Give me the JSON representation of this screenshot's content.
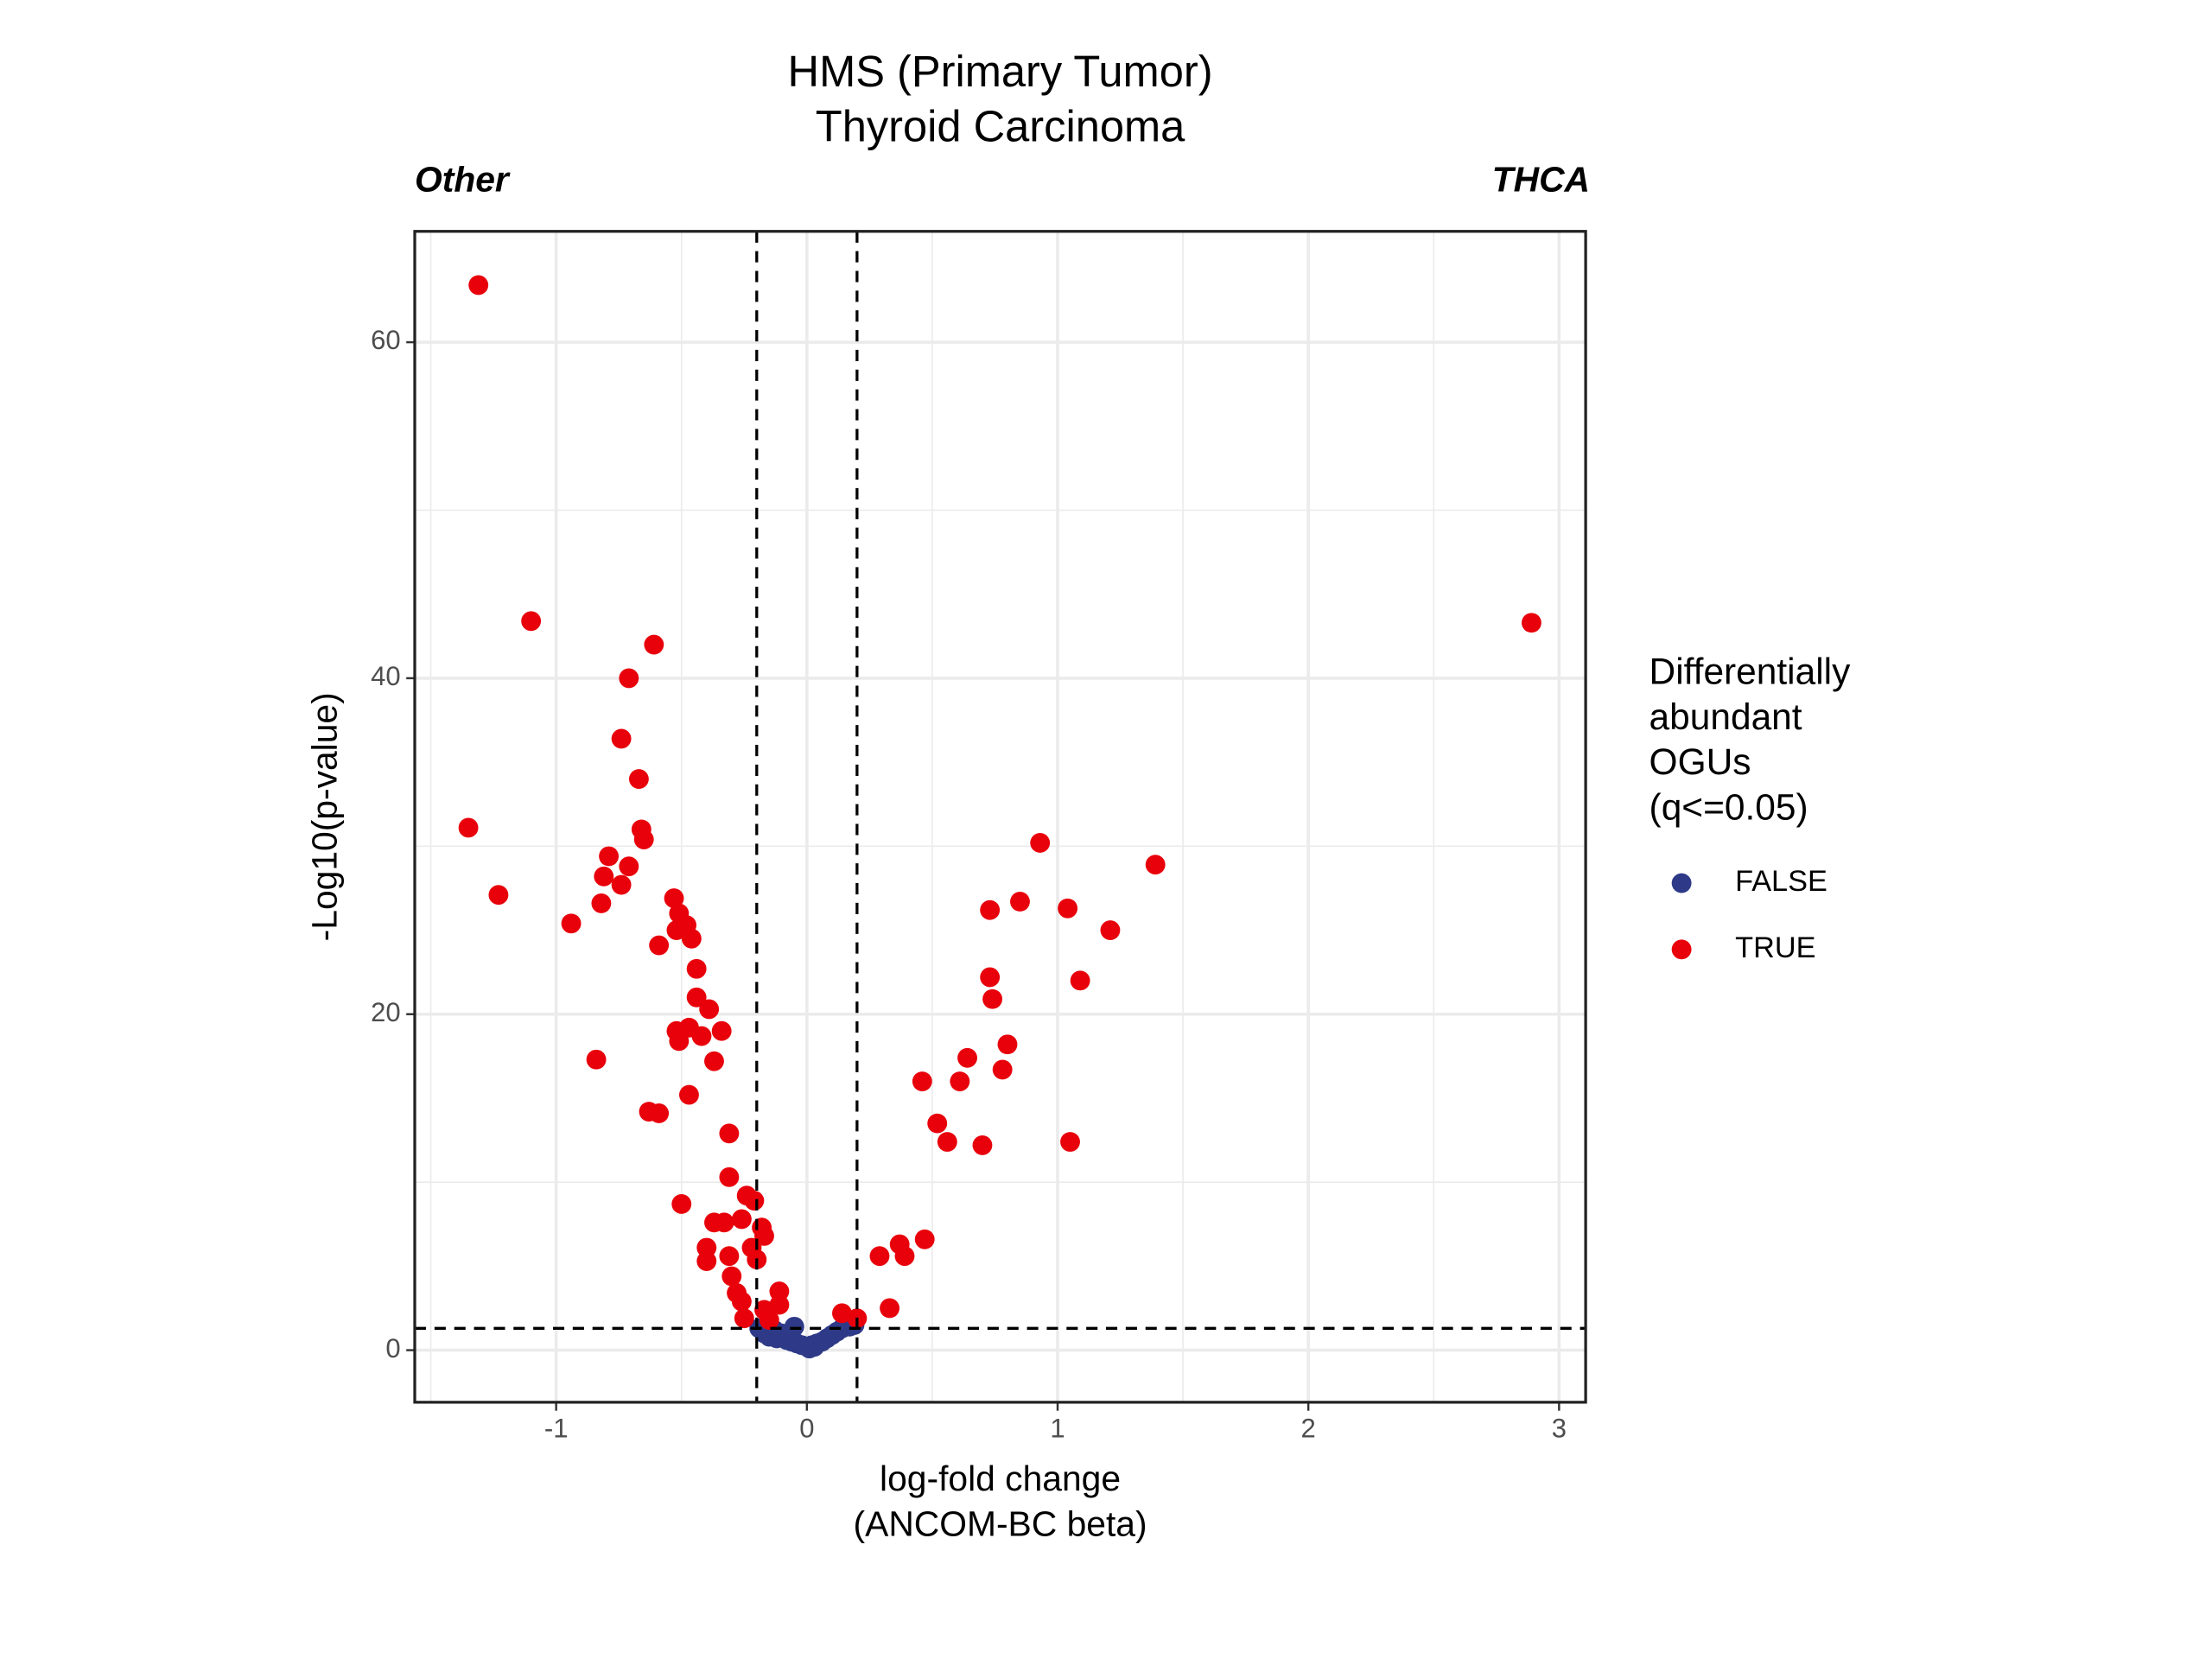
{
  "chart_data": {
    "type": "scatter",
    "title": "HMS (Primary Tumor)",
    "subtitle": "Thyroid Carcinoma",
    "annotations": {
      "left": "Other",
      "right": "THCA"
    },
    "xlabel": [
      "log-fold change",
      "(ANCOM-BC beta)"
    ],
    "ylabel": "-Log10(p-value)",
    "xlim": [
      -1.564,
      3.106
    ],
    "ylim": [
      -3.1,
      66.6
    ],
    "xticks": [
      -1,
      0,
      1,
      2,
      3
    ],
    "yticks": [
      0,
      20,
      40,
      60
    ],
    "xminor": [
      -1.5,
      -0.5,
      0.5,
      1.5,
      2.5
    ],
    "yminor": [
      10,
      30,
      50
    ],
    "grid": true,
    "vlines": [
      -0.2,
      0.2
    ],
    "hline": 1.3,
    "legend_title": [
      "Differentially",
      "abundant",
      "OGUs",
      "(q<=0.05)"
    ],
    "legend_position": "right",
    "series": [
      {
        "name": "FALSE",
        "color": "#2e3a87",
        "x": [
          -0.19,
          -0.17,
          -0.15,
          -0.13,
          -0.12,
          -0.1,
          -0.09,
          -0.08,
          -0.06,
          -0.05,
          -0.04,
          -0.02,
          0,
          0.01,
          0.02,
          0.03,
          0.04,
          0.06,
          0.08,
          0.1,
          0.12,
          0.14,
          0.17,
          0.19
        ],
        "values": [
          1.3,
          1.0,
          0.8,
          1.2,
          0.7,
          1.0,
          0.8,
          0.6,
          0.5,
          1.4,
          0.4,
          0.3,
          0.2,
          0.1,
          0.3,
          0.2,
          0.4,
          0.5,
          0.7,
          0.9,
          1.1,
          1.3,
          1.4,
          1.5
        ]
      },
      {
        "name": "TRUE",
        "color": "#e8000b",
        "x": [
          -1.31,
          -1.35,
          -1.23,
          -1.1,
          -0.94,
          -0.84,
          -0.82,
          -0.81,
          -0.79,
          -0.74,
          -0.74,
          -0.71,
          -0.71,
          -0.67,
          -0.66,
          -0.65,
          -0.61,
          -0.63,
          -0.59,
          -0.59,
          -0.53,
          -0.51,
          -0.52,
          -0.48,
          -0.46,
          -0.44,
          -0.44,
          -0.39,
          -0.47,
          -0.52,
          -0.51,
          -0.42,
          -0.34,
          -0.37,
          -0.47,
          -0.5,
          -0.31,
          -0.31,
          -0.37,
          -0.33,
          -0.4,
          -0.4,
          -0.31,
          -0.3,
          -0.28,
          -0.26,
          -0.25,
          -0.26,
          -0.24,
          -0.21,
          -0.22,
          -0.18,
          -0.17,
          -0.2,
          -0.17,
          -0.11,
          -0.11,
          -0.15,
          0.14,
          0.2,
          0.29,
          0.33,
          0.37,
          0.39,
          0.47,
          0.46,
          0.52,
          0.56,
          0.61,
          0.64,
          0.7,
          0.73,
          0.73,
          0.74,
          0.78,
          0.8,
          0.85,
          0.93,
          1.04,
          1.05,
          1.09,
          1.21,
          1.39,
          2.89
        ],
        "values": [
          63.4,
          31.1,
          27.1,
          43.4,
          25.4,
          17.3,
          26.6,
          28.2,
          29.4,
          27.7,
          36.4,
          28.8,
          40.0,
          34.0,
          31.0,
          30.4,
          42.0,
          14.2,
          14.1,
          24.1,
          26.9,
          26.0,
          25.0,
          25.3,
          24.5,
          22.7,
          21.0,
          20.3,
          19.2,
          19.0,
          18.4,
          18.7,
          19.0,
          17.2,
          15.2,
          8.7,
          12.9,
          10.3,
          7.6,
          7.6,
          6.1,
          5.3,
          5.6,
          4.4,
          3.4,
          2.9,
          1.9,
          7.8,
          9.2,
          8.9,
          6.1,
          7.3,
          6.8,
          5.4,
          2.4,
          3.5,
          2.7,
          1.8,
          2.2,
          1.9,
          5.6,
          2.5,
          6.3,
          5.6,
          6.6,
          16.0,
          13.5,
          12.4,
          16.0,
          17.4,
          12.2,
          26.2,
          22.2,
          20.9,
          16.7,
          18.2,
          26.7,
          30.2,
          26.3,
          12.4,
          22.0,
          25.0,
          28.9,
          43.3
        ]
      }
    ]
  }
}
